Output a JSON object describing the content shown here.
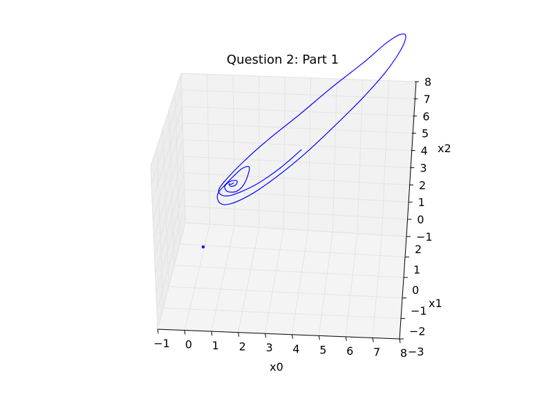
{
  "chart_data": {
    "type": "line",
    "projection": "3d",
    "title": "Question 2: Part 1",
    "xlabel": "x0",
    "ylabel": "x1",
    "zlabel": "x2",
    "xlim": [
      -1,
      8
    ],
    "ylim": [
      -3,
      2
    ],
    "zlim": [
      -1,
      8
    ],
    "x_ticks": [
      "−1",
      "0",
      "1",
      "2",
      "3",
      "4",
      "5",
      "6",
      "7",
      "8"
    ],
    "y_ticks": [
      "−3",
      "−2",
      "−1",
      "0",
      "1",
      "2"
    ],
    "z_ticks": [
      "−1",
      "0",
      "1",
      "2",
      "3",
      "4",
      "5",
      "6",
      "7",
      "8"
    ],
    "grid": true,
    "series_color": "#0000ff",
    "series": [
      {
        "points": [
          [
            3.7,
            1.5,
            3.2
          ],
          [
            2.8,
            1.4,
            1.9
          ],
          [
            1.9,
            1.3,
            0.8
          ],
          [
            1.2,
            1.2,
            0.1
          ],
          [
            0.6,
            1.0,
            -0.5
          ],
          [
            0.2,
            0.7,
            -0.9
          ],
          [
            0.0,
            0.4,
            -1.0
          ],
          [
            0.2,
            0.1,
            -0.8
          ],
          [
            0.8,
            -0.3,
            -0.2
          ],
          [
            1.8,
            -0.7,
            0.8
          ],
          [
            3.0,
            -1.0,
            2.0
          ],
          [
            4.3,
            -1.3,
            3.4
          ],
          [
            5.6,
            -1.5,
            4.8
          ],
          [
            6.5,
            -1.6,
            5.9
          ],
          [
            7.1,
            -1.5,
            6.6
          ],
          [
            7.4,
            -1.2,
            6.9
          ],
          [
            7.3,
            -0.7,
            6.7
          ],
          [
            6.8,
            -0.2,
            6.0
          ],
          [
            5.9,
            0.3,
            4.9
          ],
          [
            4.8,
            0.7,
            3.6
          ],
          [
            3.7,
            1.0,
            2.3
          ],
          [
            2.6,
            1.2,
            1.1
          ],
          [
            1.6,
            1.3,
            0.1
          ],
          [
            0.7,
            1.3,
            -0.6
          ],
          [
            0.2,
            1.0,
            -1.0
          ],
          [
            0.0,
            0.6,
            -1.0
          ],
          [
            0.3,
            0.3,
            -0.7
          ],
          [
            0.9,
            0.2,
            0.1
          ],
          [
            1.3,
            0.5,
            0.6
          ],
          [
            1.2,
            0.9,
            0.2
          ],
          [
            0.9,
            1.0,
            -0.2
          ],
          [
            0.5,
            0.9,
            -0.4
          ],
          [
            0.3,
            0.6,
            -0.5
          ],
          [
            0.5,
            0.5,
            -0.3
          ],
          [
            0.8,
            0.6,
            -0.1
          ],
          [
            0.8,
            0.8,
            -0.1
          ],
          [
            0.6,
            0.8,
            -0.2
          ],
          [
            0.5,
            0.7,
            -0.2
          ],
          [
            0.6,
            0.7,
            -0.2
          ],
          [
            0.7,
            0.7,
            -0.1
          ]
        ]
      }
    ]
  }
}
